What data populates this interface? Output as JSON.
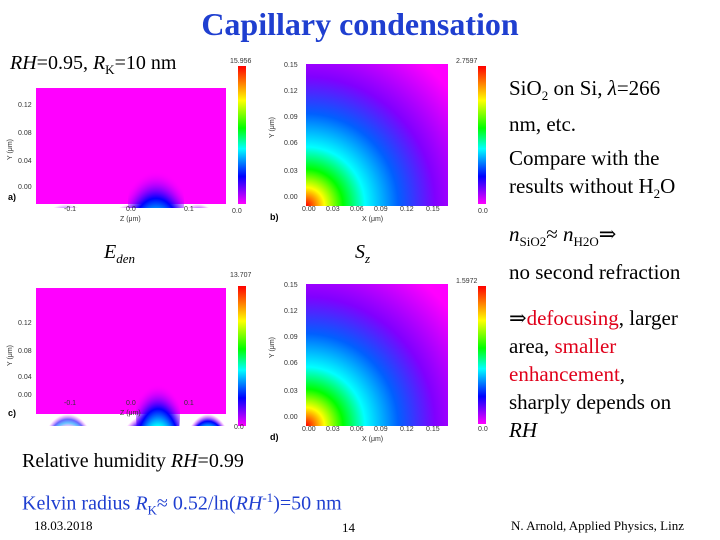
{
  "title": "Capillary condensation",
  "params_top": {
    "rh_label": "RH",
    "rh_val": "=0.95, ",
    "rk_label": "R",
    "rk_sub": "K",
    "rk_val": "=10 nm"
  },
  "labels": {
    "eden": "E",
    "eden_sub": "den",
    "sz": "S",
    "sz_sub": "z"
  },
  "right": {
    "line1a": "SiO",
    "line1b": "2",
    "line1c": " on Si, ",
    "lambda": "λ",
    "line1d": "=266",
    "line2": "nm, etc.",
    "compare1": "Compare with the",
    "compare2a": "results without H",
    "compare2b": "2",
    "compare2c": "O",
    "n_label": "n",
    "n_sub1": "SiO2",
    "approx": "≈",
    "n_sub2": "H2O",
    "implies": "⇒",
    "no_second": "no second refraction",
    "defocus_a": "⇒",
    "defocus_b": "defocusing",
    "defocus_c": ", larger",
    "area_a": "area, ",
    "area_b": "smaller",
    "enh_a": "enhancement",
    "enh_b": ",",
    "sharply": "sharply depends on",
    "rh": "RH"
  },
  "bottom": {
    "rh_text": "Relative humidity ",
    "rh_it": "RH",
    "rh_val": "=0.99",
    "kelvin_a": "Kelvin radius ",
    "kelvin_r": "R",
    "kelvin_sub": "K",
    "kelvin_b": "≈ 0.52/ln(",
    "kelvin_rh": "RH",
    "kelvin_sup": "-1",
    "kelvin_c": ")=50 nm"
  },
  "footer": {
    "date": "18.03.2018",
    "page": "14",
    "author": "N. Arnold, Applied Physics, Linz"
  },
  "plots": {
    "a": {
      "panel": "a)",
      "cbar_max": "15.956",
      "cbar_min": "0.0",
      "yticks": [
        "0.12",
        "0.08",
        "0.04",
        "0.00"
      ],
      "xticks": [
        "-0.1",
        "0.0",
        "0.1"
      ],
      "xlabel": "Z (μm)",
      "ylabel": "Y (μm)"
    },
    "b": {
      "panel": "b)",
      "cbar_max": "2.7597",
      "cbar_min": "0.0",
      "yticks": [
        "0.15",
        "0.12",
        "0.09",
        "0.06",
        "0.03",
        "0.00"
      ],
      "xticks": [
        "0.00",
        "0.03",
        "0.06",
        "0.09",
        "0.12",
        "0.15"
      ],
      "xlabel": "X (μm)",
      "ylabel": "Y (μm)"
    },
    "c": {
      "panel": "c)",
      "cbar_max": "13.707",
      "cbar_min": "0.0",
      "yticks": [
        "0.12",
        "0.08",
        "0.04",
        "0.00"
      ],
      "xticks": [
        "-0.1",
        "0.0",
        "0.1"
      ],
      "xlabel": "Z (μm)",
      "ylabel": "Y (μm)"
    },
    "d": {
      "panel": "d)",
      "cbar_max": "1.5972",
      "cbar_min": "0.0",
      "yticks": [
        "0.15",
        "0.12",
        "0.09",
        "0.06",
        "0.03",
        "0.00"
      ],
      "xticks": [
        "0.00",
        "0.03",
        "0.06",
        "0.09",
        "0.12",
        "0.15"
      ],
      "xlabel": "X (μm)",
      "ylabel": "Y (μm)"
    }
  },
  "colors": {
    "title": "#1f3fd0",
    "highlight": "#e0001a"
  }
}
